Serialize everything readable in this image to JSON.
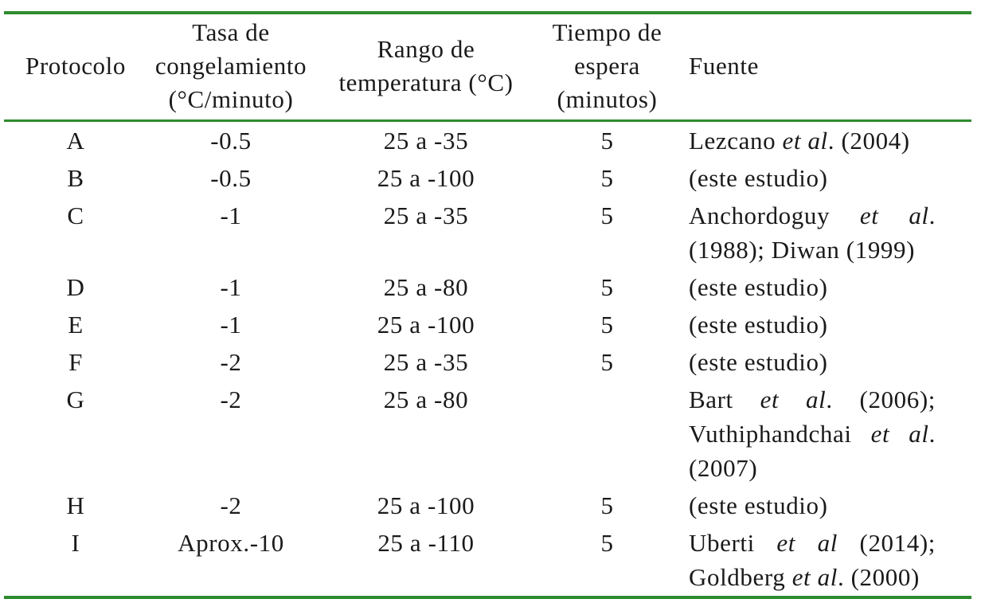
{
  "table": {
    "header": [
      [
        "Protocolo"
      ],
      [
        "Tasa de",
        "congelamiento",
        "(°C/minuto)"
      ],
      [
        "Rango de",
        "temperatura (°C)"
      ],
      [
        "Tiempo de",
        "espera",
        "(minutos)"
      ],
      [
        "Fuente"
      ]
    ],
    "rows": [
      [
        "A",
        "-0.5",
        "25 a -35",
        "5",
        {
          "parts": [
            "Lezcano ",
            "et al",
            ". (2004)"
          ],
          "italic": [
            1
          ]
        }
      ],
      [
        "B",
        "-0.5",
        "25 a -100",
        "5",
        {
          "parts": [
            "(este estudio)"
          ],
          "italic": []
        }
      ],
      [
        "C",
        "-1",
        "25 a -35",
        "5",
        {
          "parts": [
            "Anchordoguy ",
            "et al",
            ". (1988); Diwan (1999)"
          ],
          "italic": [
            1
          ]
        }
      ],
      [
        "D",
        "-1",
        "25 a -80",
        "5",
        {
          "parts": [
            "(este estudio)"
          ],
          "italic": []
        }
      ],
      [
        "E",
        "-1",
        "25 a -100",
        "5",
        {
          "parts": [
            "(este estudio)"
          ],
          "italic": []
        }
      ],
      [
        "F",
        "-2",
        "25 a -35",
        "5",
        {
          "parts": [
            "(este estudio)"
          ],
          "italic": []
        }
      ],
      [
        "G",
        "-2",
        "25 a -80",
        null,
        {
          "parts": [
            "Bart ",
            "et al",
            ". (2006); Vuthiphandchai ",
            "et al",
            ". (2007)"
          ],
          "italic": [
            1,
            3
          ]
        }
      ],
      [
        "H",
        "-2",
        "25 a -100",
        "5",
        {
          "parts": [
            "(este estudio)"
          ],
          "italic": []
        }
      ],
      [
        "I",
        "Aprox.-10",
        "25 a -110",
        "5",
        {
          "parts": [
            "Uberti ",
            "et al",
            " (2014); Goldberg ",
            "et al",
            ". (2000)"
          ],
          "italic": [
            1,
            3
          ]
        }
      ]
    ]
  }
}
